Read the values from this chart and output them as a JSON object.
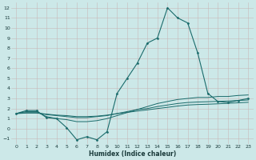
{
  "xlabel": "Humidex (Indice chaleur)",
  "bg_color": "#cce8e8",
  "grid_color": "#b8cccc",
  "line_color": "#1a6b6b",
  "xlim": [
    -0.5,
    23.5
  ],
  "ylim": [
    -1.5,
    12.5
  ],
  "xticks": [
    0,
    1,
    2,
    3,
    4,
    5,
    6,
    7,
    8,
    9,
    10,
    11,
    12,
    13,
    14,
    15,
    16,
    17,
    18,
    19,
    20,
    21,
    22,
    23
  ],
  "yticks": [
    -1,
    0,
    1,
    2,
    3,
    4,
    5,
    6,
    7,
    8,
    9,
    10,
    11,
    12
  ],
  "main_line_x": [
    0,
    1,
    2,
    3,
    4,
    5,
    6,
    7,
    8,
    9,
    10,
    11,
    12,
    13,
    14,
    15,
    16,
    17,
    18,
    19,
    20,
    21,
    22,
    23
  ],
  "main_line_y": [
    1.5,
    1.8,
    1.8,
    1.1,
    1.0,
    0.1,
    -1.1,
    -0.8,
    -1.1,
    -0.3,
    3.5,
    5.0,
    6.5,
    8.5,
    9.0,
    12.0,
    11.0,
    10.5,
    7.5,
    3.5,
    2.7,
    2.6,
    2.8,
    3.0
  ],
  "line2_x": [
    0,
    1,
    2,
    3,
    4,
    5,
    6,
    7,
    8,
    9,
    10,
    11,
    12,
    13,
    14,
    15,
    16,
    17,
    18,
    19,
    20,
    21,
    22,
    23
  ],
  "line2_y": [
    1.5,
    1.7,
    1.7,
    1.2,
    1.0,
    0.9,
    0.7,
    0.7,
    0.8,
    1.0,
    1.3,
    1.6,
    1.9,
    2.2,
    2.5,
    2.7,
    2.9,
    3.0,
    3.1,
    3.1,
    3.2,
    3.2,
    3.3,
    3.35
  ],
  "line3_x": [
    0,
    1,
    2,
    3,
    4,
    5,
    6,
    7,
    8,
    9,
    10,
    11,
    12,
    13,
    14,
    15,
    16,
    17,
    18,
    19,
    20,
    21,
    22,
    23
  ],
  "line3_y": [
    1.5,
    1.6,
    1.6,
    1.4,
    1.3,
    1.2,
    1.1,
    1.1,
    1.2,
    1.3,
    1.5,
    1.7,
    1.9,
    2.0,
    2.2,
    2.35,
    2.5,
    2.6,
    2.65,
    2.68,
    2.72,
    2.75,
    2.8,
    2.85
  ],
  "line4_x": [
    0,
    1,
    2,
    3,
    4,
    5,
    6,
    7,
    8,
    9,
    10,
    11,
    12,
    13,
    14,
    15,
    16,
    17,
    18,
    19,
    20,
    21,
    22,
    23
  ],
  "line4_y": [
    1.5,
    1.55,
    1.55,
    1.45,
    1.35,
    1.3,
    1.2,
    1.2,
    1.25,
    1.35,
    1.5,
    1.62,
    1.75,
    1.87,
    2.0,
    2.12,
    2.25,
    2.35,
    2.4,
    2.43,
    2.47,
    2.52,
    2.57,
    2.62
  ]
}
